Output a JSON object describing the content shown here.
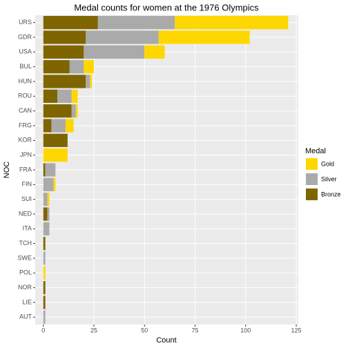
{
  "chart_data": {
    "type": "bar",
    "orientation": "horizontal",
    "stacked": true,
    "title": "Medal counts for women at the 1976 Olympics",
    "x_label": "Count",
    "y_label": "NOC",
    "legend_title": "Medal",
    "legend_position": "right",
    "categories": [
      "URS",
      "GDR",
      "USA",
      "BUL",
      "HUN",
      "ROU",
      "CAN",
      "FRG",
      "KOR",
      "JPN",
      "FRA",
      "FIN",
      "SUI",
      "NED",
      "ITA",
      "TCH",
      "SWE",
      "POL",
      "NOR",
      "LIE",
      "AUT"
    ],
    "series": [
      {
        "name": "Bronze",
        "color": "#7f6500",
        "values": [
          27,
          21,
          20,
          13,
          21,
          7,
          14,
          4,
          12,
          0,
          1,
          0,
          0,
          2,
          0,
          1,
          0,
          0,
          1,
          1,
          0
        ]
      },
      {
        "name": "Silver",
        "color": "#aaaaaa",
        "values": [
          38,
          36,
          30,
          7,
          2,
          7,
          2,
          7,
          0,
          0,
          5,
          5,
          2,
          1,
          3,
          0,
          1,
          0,
          0,
          0,
          1
        ]
      },
      {
        "name": "Gold",
        "color": "#ffd700",
        "values": [
          56,
          45,
          10,
          5,
          1,
          3,
          1,
          4,
          0,
          12,
          0,
          1,
          1,
          0,
          0,
          0,
          0,
          1,
          0,
          0,
          0
        ]
      }
    ],
    "legend_order": [
      "Gold",
      "Silver",
      "Bronze"
    ],
    "xlim": [
      -4,
      126
    ],
    "xticks": [
      0,
      25,
      50,
      75,
      100,
      125
    ],
    "grid": true
  }
}
